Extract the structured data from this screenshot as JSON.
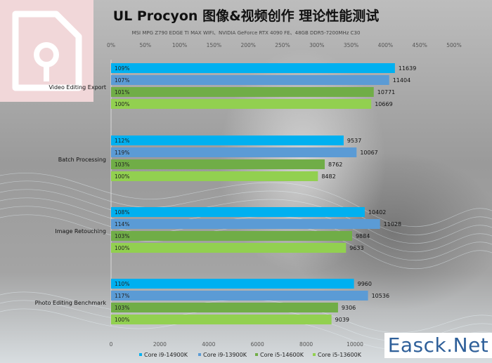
{
  "title": "UL Procyon  图像&视频创作 理论性能测试",
  "subtitle": "MSI MPG Z790 EDGE TI MAX WIFI、NVIDIA GeForce RTX 4090 FE、48GB DDR5-7200MHz C30",
  "watermark": "Easck.Net",
  "chart_data": {
    "type": "bar",
    "orientation": "horizontal",
    "categories": [
      "Video Editing Export",
      "Batch Processing",
      "Image Retouching",
      "Photo Editing Benchmark"
    ],
    "series": [
      {
        "name": "Core i9-14900K",
        "color": "#00b0f0",
        "values": [
          11639,
          9537,
          10402,
          9960
        ],
        "percent_labels": [
          "109%",
          "112%",
          "108%",
          "110%"
        ]
      },
      {
        "name": "Core i9-13900K",
        "color": "#5b9bd5",
        "values": [
          11404,
          10067,
          11028,
          10536
        ],
        "percent_labels": [
          "107%",
          "119%",
          "114%",
          "117%"
        ]
      },
      {
        "name": "Core i5-14600K",
        "color": "#70ad47",
        "values": [
          10771,
          8762,
          9884,
          9306
        ],
        "percent_labels": [
          "101%",
          "103%",
          "103%",
          "103%"
        ]
      },
      {
        "name": "Core i5-13600K",
        "color": "#92d050",
        "values": [
          10669,
          8482,
          9633,
          9039
        ],
        "percent_labels": [
          "100%",
          "100%",
          "100%",
          "100%"
        ]
      }
    ],
    "x_bottom": {
      "ticks": [
        0,
        2000,
        4000,
        6000,
        8000,
        10000
      ],
      "range": [
        0,
        14000
      ]
    },
    "x_top": {
      "ticks": [
        "0%",
        "50%",
        "100%",
        "150%",
        "200%",
        "250%",
        "300%",
        "350%",
        "400%",
        "450%",
        "500%"
      ]
    },
    "legend_position": "bottom",
    "grid": false
  }
}
